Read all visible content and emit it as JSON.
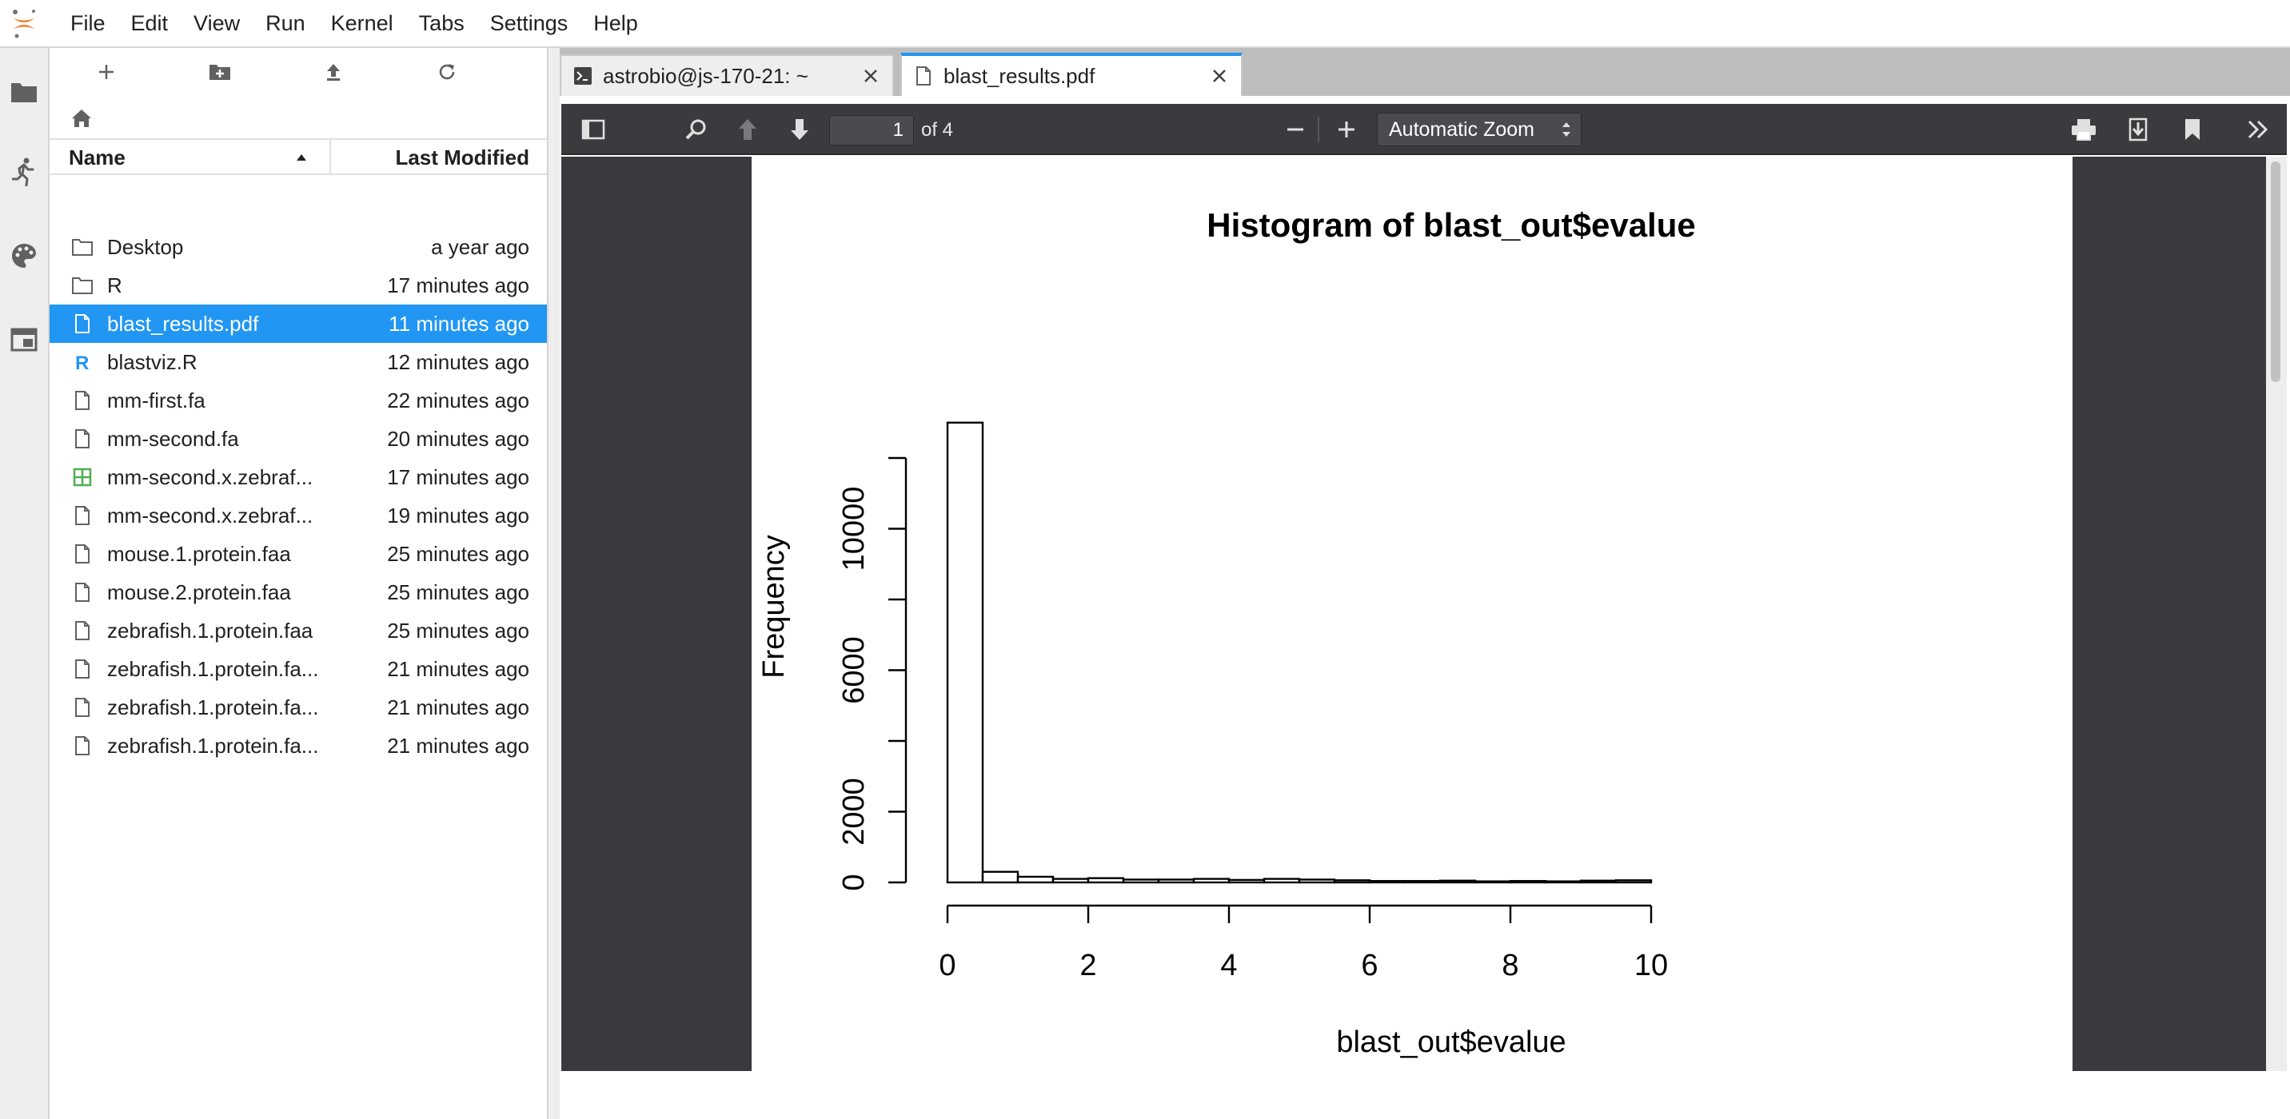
{
  "menubar": {
    "items": [
      "File",
      "Edit",
      "View",
      "Run",
      "Kernel",
      "Tabs",
      "Settings",
      "Help"
    ]
  },
  "activity_icons": [
    "folder-icon",
    "running-icon",
    "palette-icon",
    "tabs-icon"
  ],
  "filebrowser": {
    "toolbar": [
      "new-launcher-icon",
      "new-folder-icon",
      "upload-icon",
      "refresh-icon"
    ],
    "header": {
      "name": "Name",
      "modified": "Last Modified"
    },
    "files": [
      {
        "name": "Desktop",
        "modified": "a year ago",
        "type": "folder"
      },
      {
        "name": "R",
        "modified": "17 minutes ago",
        "type": "folder"
      },
      {
        "name": "blast_results.pdf",
        "modified": "11 minutes ago",
        "type": "file",
        "selected": true
      },
      {
        "name": "blastviz.R",
        "modified": "12 minutes ago",
        "type": "r"
      },
      {
        "name": "mm-first.fa",
        "modified": "22 minutes ago",
        "type": "file"
      },
      {
        "name": "mm-second.fa",
        "modified": "20 minutes ago",
        "type": "file"
      },
      {
        "name": "mm-second.x.zebraf...",
        "modified": "17 minutes ago",
        "type": "csv"
      },
      {
        "name": "mm-second.x.zebraf...",
        "modified": "19 minutes ago",
        "type": "file"
      },
      {
        "name": "mouse.1.protein.faa",
        "modified": "25 minutes ago",
        "type": "file"
      },
      {
        "name": "mouse.2.protein.faa",
        "modified": "25 minutes ago",
        "type": "file"
      },
      {
        "name": "zebrafish.1.protein.faa",
        "modified": "25 minutes ago",
        "type": "file"
      },
      {
        "name": "zebrafish.1.protein.fa...",
        "modified": "21 minutes ago",
        "type": "file"
      },
      {
        "name": "zebrafish.1.protein.fa...",
        "modified": "21 minutes ago",
        "type": "file"
      },
      {
        "name": "zebrafish.1.protein.fa...",
        "modified": "21 minutes ago",
        "type": "file"
      }
    ]
  },
  "tabs": [
    {
      "label": "astrobio@js-170-21: ~",
      "icon": "terminal-icon",
      "active": false
    },
    {
      "label": "blast_results.pdf",
      "icon": "file-icon",
      "active": true
    }
  ],
  "pdf_toolbar": {
    "page_number": "1",
    "page_count": "of 4",
    "zoom": "Automatic Zoom"
  },
  "colors": {
    "accent": "#2196f3",
    "selected_row": "#2196f3",
    "viewer_bg": "#3a3a3e",
    "toolbar_bg": "#3b3b3f",
    "jupyter_orange": "#f37726",
    "csv_green": "#4caf50"
  },
  "chart_data": {
    "type": "bar",
    "title": "Histogram of blast_out$evalue",
    "xlabel": "blast_out$evalue",
    "ylabel": "Frequency",
    "xlim": [
      0,
      10
    ],
    "ylim": [
      0,
      12000
    ],
    "x_ticks": [
      "0",
      "2",
      "4",
      "6",
      "8",
      "10"
    ],
    "y_ticks": [
      "0",
      "2000",
      "6000",
      "10000"
    ],
    "y_tick_marks": [
      0,
      2000,
      4000,
      6000,
      8000,
      10000,
      12000
    ],
    "bin_width": 0.5,
    "bin_starts": [
      0,
      0.5,
      1,
      1.5,
      2,
      2.5,
      3,
      3.5,
      4,
      4.5,
      5,
      5.5,
      6,
      6.5,
      7,
      7.5,
      8,
      8.5,
      9,
      9.5
    ],
    "values": [
      13000,
      300,
      160,
      100,
      120,
      80,
      80,
      100,
      70,
      100,
      80,
      60,
      40,
      40,
      50,
      30,
      40,
      30,
      50,
      60
    ]
  }
}
